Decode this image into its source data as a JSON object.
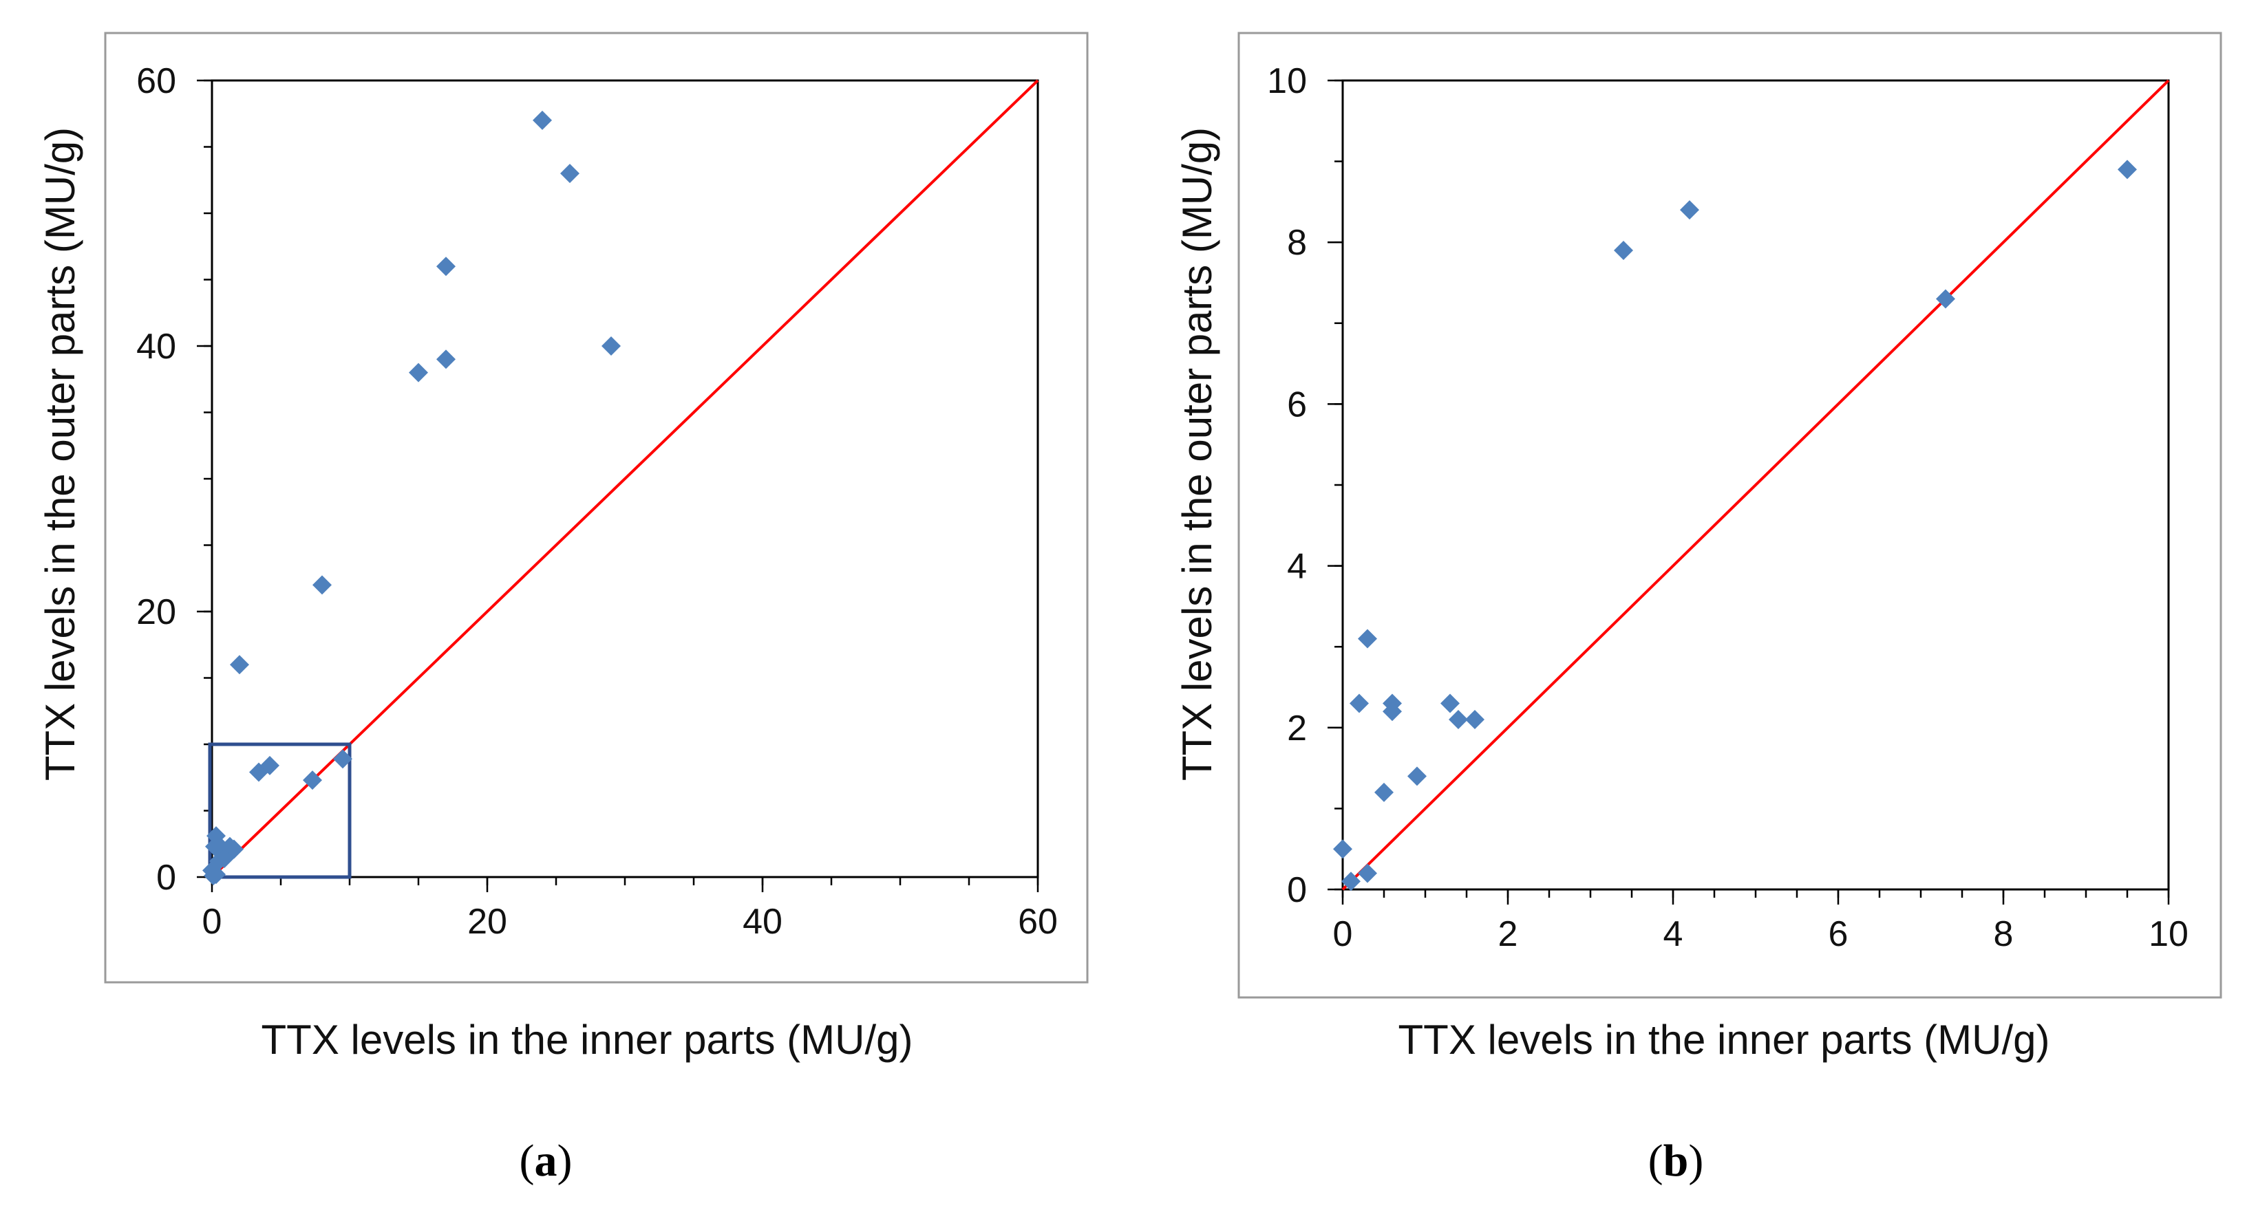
{
  "chart_data": [
    {
      "type": "scatter",
      "panel_label": "a",
      "xlabel": "TTX levels in the inner parts (MU/g)",
      "ylabel": "TTX levels in the outer parts (MU/g)",
      "xlim": [
        0,
        60
      ],
      "ylim": [
        0,
        60
      ],
      "x_ticks": [
        0,
        20,
        40,
        60
      ],
      "y_ticks": [
        0,
        20,
        40,
        60
      ],
      "x_minor_step": 5,
      "y_minor_step": 5,
      "marker_color": "#4f81bd",
      "reference_line": {
        "color": "#ff0000",
        "from": [
          0,
          0
        ],
        "to": [
          60,
          60
        ]
      },
      "inset_box": {
        "x": [
          0,
          10
        ],
        "y": [
          0,
          10
        ],
        "color": "#2f4f8f"
      },
      "points": [
        {
          "x": 24,
          "y": 57
        },
        {
          "x": 26,
          "y": 53
        },
        {
          "x": 17,
          "y": 46
        },
        {
          "x": 29,
          "y": 40
        },
        {
          "x": 17,
          "y": 39
        },
        {
          "x": 15,
          "y": 38
        },
        {
          "x": 8,
          "y": 22
        },
        {
          "x": 2,
          "y": 16
        },
        {
          "x": 3.4,
          "y": 7.9
        },
        {
          "x": 4.2,
          "y": 8.4
        },
        {
          "x": 7.3,
          "y": 7.3
        },
        {
          "x": 9.5,
          "y": 8.9
        },
        {
          "x": 0.3,
          "y": 3.1
        },
        {
          "x": 0.2,
          "y": 2.3
        },
        {
          "x": 0.6,
          "y": 2.3
        },
        {
          "x": 0.6,
          "y": 2.2
        },
        {
          "x": 1.3,
          "y": 2.3
        },
        {
          "x": 1.4,
          "y": 2.1
        },
        {
          "x": 1.6,
          "y": 2.1
        },
        {
          "x": 0.9,
          "y": 1.4
        },
        {
          "x": 0.5,
          "y": 1.2
        },
        {
          "x": 0,
          "y": 0.5
        },
        {
          "x": 0.3,
          "y": 0.2
        },
        {
          "x": 0.1,
          "y": 0.1
        }
      ]
    },
    {
      "type": "scatter",
      "panel_label": "b",
      "xlabel": "TTX levels in the inner parts (MU/g)",
      "ylabel": "TTX levels in the outer parts (MU/g)",
      "xlim": [
        0,
        10
      ],
      "ylim": [
        0,
        10
      ],
      "x_ticks": [
        0,
        2,
        4,
        6,
        8,
        10
      ],
      "y_ticks": [
        0,
        2,
        4,
        6,
        8,
        10
      ],
      "x_minor_step": 0.5,
      "y_minor_step": 1,
      "marker_color": "#4f81bd",
      "reference_line": {
        "color": "#ff0000",
        "from": [
          0,
          0
        ],
        "to": [
          10,
          10
        ]
      },
      "points": [
        {
          "x": 4.2,
          "y": 8.4
        },
        {
          "x": 9.5,
          "y": 8.9
        },
        {
          "x": 3.4,
          "y": 7.9
        },
        {
          "x": 7.3,
          "y": 7.3
        },
        {
          "x": 0.3,
          "y": 3.1
        },
        {
          "x": 0.2,
          "y": 2.3
        },
        {
          "x": 0.6,
          "y": 2.3
        },
        {
          "x": 0.6,
          "y": 2.2
        },
        {
          "x": 1.3,
          "y": 2.3
        },
        {
          "x": 1.4,
          "y": 2.1
        },
        {
          "x": 1.6,
          "y": 2.1
        },
        {
          "x": 0.9,
          "y": 1.4
        },
        {
          "x": 0.5,
          "y": 1.2
        },
        {
          "x": 0,
          "y": 0.5
        },
        {
          "x": 0.3,
          "y": 0.2
        },
        {
          "x": 0.1,
          "y": 0.1
        }
      ]
    }
  ]
}
